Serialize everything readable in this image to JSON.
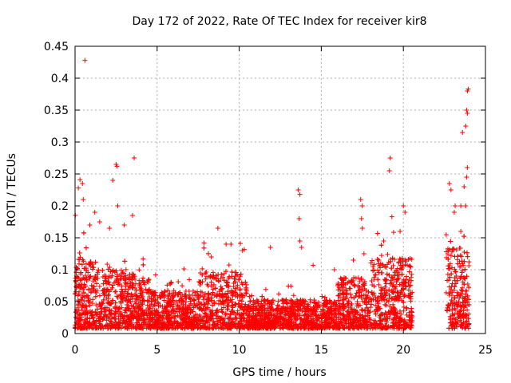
{
  "chart_data": {
    "type": "scatter",
    "title": "Day 172 of 2022, Rate Of TEC Index for receiver kir8",
    "xlabel": "GPS time / hours",
    "ylabel": "ROTI / TECUs",
    "xlim": [
      0,
      25
    ],
    "ylim": [
      0,
      0.45
    ],
    "x_ticks": [
      "0",
      "5",
      "10",
      "15",
      "20",
      "25"
    ],
    "y_ticks": [
      "0",
      "0.05",
      "0.1",
      "0.15",
      "0.2",
      "0.25",
      "0.3",
      "0.35",
      "0.4",
      "0.45"
    ],
    "grid": true,
    "legend": "none",
    "marker": "+",
    "colors": {
      "series": "#ff0000",
      "grid": "#b0b0b0",
      "axis": "#000000"
    },
    "series": [
      {
        "points": [
          [
            0.6,
            0.428
          ],
          [
            2.5,
            0.265
          ],
          [
            2.55,
            0.262
          ],
          [
            3.6,
            0.275
          ],
          [
            0.3,
            0.241
          ],
          [
            0.45,
            0.235
          ],
          [
            0.2,
            0.228
          ],
          [
            0.5,
            0.21
          ],
          [
            1.2,
            0.19
          ],
          [
            2.3,
            0.24
          ],
          [
            2.6,
            0.2
          ],
          [
            3.5,
            0.185
          ],
          [
            0.9,
            0.17
          ],
          [
            1.5,
            0.175
          ],
          [
            2.1,
            0.165
          ],
          [
            3.0,
            0.17
          ],
          [
            8.7,
            0.165
          ],
          [
            9.2,
            0.14
          ],
          [
            9.5,
            0.14
          ],
          [
            10.2,
            0.13
          ],
          [
            8.3,
            0.12
          ],
          [
            11.9,
            0.135
          ],
          [
            13.6,
            0.225
          ],
          [
            13.7,
            0.218
          ],
          [
            13.65,
            0.18
          ],
          [
            13.7,
            0.145
          ],
          [
            13.8,
            0.135
          ],
          [
            14.5,
            0.107
          ],
          [
            15.8,
            0.1
          ],
          [
            16.0,
            0.075
          ],
          [
            17.4,
            0.21
          ],
          [
            17.5,
            0.2
          ],
          [
            17.45,
            0.18
          ],
          [
            17.5,
            0.165
          ],
          [
            17.6,
            0.125
          ],
          [
            19.2,
            0.275
          ],
          [
            19.15,
            0.255
          ],
          [
            19.3,
            0.183
          ],
          [
            20.0,
            0.2
          ],
          [
            20.1,
            0.19
          ],
          [
            19.8,
            0.16
          ],
          [
            18.8,
            0.145
          ],
          [
            22.8,
            0.235
          ],
          [
            22.9,
            0.225
          ],
          [
            23.1,
            0.19
          ],
          [
            23.5,
            0.2
          ],
          [
            23.7,
            0.23
          ],
          [
            23.9,
            0.38
          ],
          [
            23.95,
            0.383
          ],
          [
            23.85,
            0.35
          ],
          [
            23.9,
            0.345
          ],
          [
            23.8,
            0.325
          ],
          [
            23.6,
            0.315
          ],
          [
            23.9,
            0.26
          ],
          [
            23.85,
            0.245
          ],
          [
            23.8,
            0.2
          ],
          [
            23.5,
            0.16
          ]
        ]
      }
    ]
  }
}
